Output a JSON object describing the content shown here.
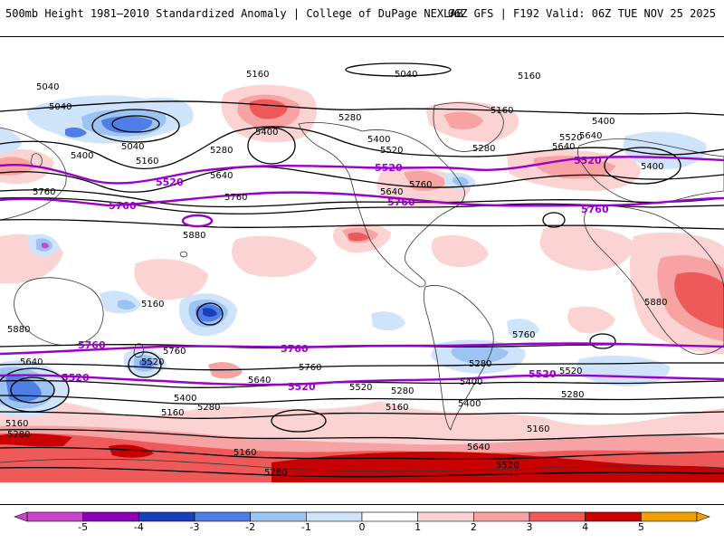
{
  "header": {
    "left_title": "500mb Height 1981–2010 Standardized Anomaly | College of DuPage NEXLAB",
    "right_title": "06Z GFS | F192 Valid: 06Z TUE NOV 25 2025"
  },
  "colors": {
    "pos1": "#fcd3d3",
    "pos2": "#f7a3a3",
    "pos3": "#ee5a5a",
    "pos4": "#c80000",
    "neg1": "#cfe3fb",
    "neg2": "#9cc4f3",
    "neg3": "#4f7ee6",
    "neg4": "#1a3fb8",
    "highlight_contour": "#9a00c8",
    "contour": "#000000",
    "land_outline": "#333333"
  },
  "contour_labels": [
    {
      "id": "c1",
      "text": "5040"
    },
    {
      "id": "c2",
      "text": "5040"
    },
    {
      "id": "c3",
      "text": "5160"
    },
    {
      "id": "c4",
      "text": "5040"
    },
    {
      "id": "c5",
      "text": "5160"
    },
    {
      "id": "c6",
      "text": "5040"
    },
    {
      "id": "c7",
      "text": "5400"
    },
    {
      "id": "c8",
      "text": "5160"
    },
    {
      "id": "c9",
      "text": "5280"
    },
    {
      "id": "c10",
      "text": "5640"
    },
    {
      "id": "c11",
      "text": "5280"
    },
    {
      "id": "c12",
      "text": "5400"
    },
    {
      "id": "c13",
      "text": "5400"
    },
    {
      "id": "c14",
      "text": "5520"
    },
    {
      "id": "c15",
      "text": "5160"
    },
    {
      "id": "c16",
      "text": "5280"
    },
    {
      "id": "c17",
      "text": "5520"
    },
    {
      "id": "c18",
      "text": "5640"
    },
    {
      "id": "c19",
      "text": "5400"
    },
    {
      "id": "c20",
      "text": "5400"
    },
    {
      "id": "c21",
      "text": "5760"
    },
    {
      "id": "c22",
      "text": "5760"
    },
    {
      "id": "c23",
      "text": "5640"
    },
    {
      "id": "c24",
      "text": "5760"
    },
    {
      "id": "c25",
      "text": "5880"
    },
    {
      "id": "c26",
      "text": "5880"
    },
    {
      "id": "c27",
      "text": "5880"
    },
    {
      "id": "c28",
      "text": "5760"
    },
    {
      "id": "c29",
      "text": "5640"
    },
    {
      "id": "c30",
      "text": "5520"
    },
    {
      "id": "c31",
      "text": "5760"
    },
    {
      "id": "c32",
      "text": "5640"
    },
    {
      "id": "c33",
      "text": "5520"
    },
    {
      "id": "c34",
      "text": "5280"
    },
    {
      "id": "c35",
      "text": "5400"
    },
    {
      "id": "c36",
      "text": "5160"
    },
    {
      "id": "c37",
      "text": "5280"
    },
    {
      "id": "c38",
      "text": "5160"
    },
    {
      "id": "c39",
      "text": "5400"
    },
    {
      "id": "c40",
      "text": "5520"
    },
    {
      "id": "c41",
      "text": "5280"
    },
    {
      "id": "c42",
      "text": "5160"
    },
    {
      "id": "c43",
      "text": "5160"
    },
    {
      "id": "c44",
      "text": "5280"
    },
    {
      "id": "c45",
      "text": "5160"
    },
    {
      "id": "c46",
      "text": "5280"
    },
    {
      "id": "c47",
      "text": "5640"
    },
    {
      "id": "c48",
      "text": "5520"
    },
    {
      "id": "c49",
      "text": "5760"
    },
    {
      "id": "c50",
      "text": "5280"
    },
    {
      "id": "c51",
      "text": "5160"
    },
    {
      "id": "c52",
      "text": "5400"
    },
    {
      "id": "c53",
      "text": "5640"
    }
  ],
  "highlight_labels": [
    {
      "id": "h1",
      "text": "5520"
    },
    {
      "id": "h2",
      "text": "5760"
    },
    {
      "id": "h3",
      "text": "5520"
    },
    {
      "id": "h4",
      "text": "5760"
    },
    {
      "id": "h5",
      "text": "5520"
    },
    {
      "id": "h6",
      "text": "5760"
    },
    {
      "id": "h7",
      "text": "5760"
    },
    {
      "id": "h8",
      "text": "5760"
    },
    {
      "id": "h9",
      "text": "5520"
    },
    {
      "id": "h10",
      "text": "5520"
    },
    {
      "id": "h11",
      "text": "5520"
    }
  ],
  "colorbar": {
    "labels": [
      "-5",
      "-4",
      "-3",
      "-2",
      "-1",
      "0",
      "1",
      "2",
      "3",
      "4",
      "5"
    ],
    "bins": [
      {
        "value": -5,
        "color": "#cc44cc"
      },
      {
        "value": -4.5,
        "color": "#8a00b8"
      },
      {
        "value": -4,
        "color": "#1a3fb8"
      },
      {
        "value": -3,
        "color": "#4f7ee6"
      },
      {
        "value": -2,
        "color": "#9cc4f3"
      },
      {
        "value": -1,
        "color": "#cfe3fb"
      },
      {
        "value": 0,
        "color": "#ffffff"
      },
      {
        "value": 1,
        "color": "#fcd3d3"
      },
      {
        "value": 2,
        "color": "#f7a3a3"
      },
      {
        "value": 3,
        "color": "#ee5a5a"
      },
      {
        "value": 4,
        "color": "#c80000"
      },
      {
        "value": 4.5,
        "color": "#f0a000"
      }
    ]
  }
}
